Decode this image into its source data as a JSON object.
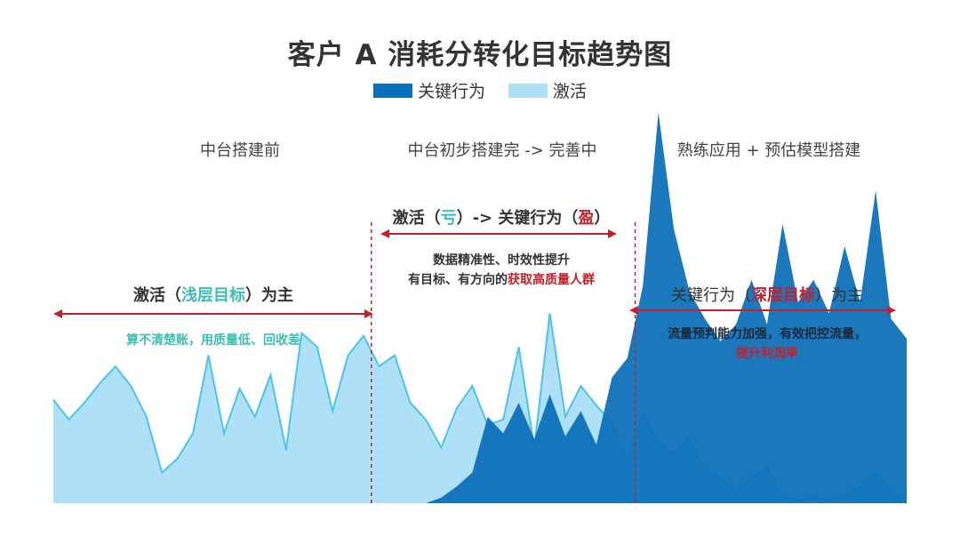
{
  "title": "客户 A 消耗分转化目标趋势图",
  "legend": {
    "series1": "关键行为",
    "series1_color": "#0b6eb8",
    "series2": "激活",
    "series2_color": "#aee0f8"
  },
  "phases": {
    "p1": "中台搭建前",
    "p2": "中台初步搭建完 -> 完善中",
    "p3": "熟练应用 + 预估模型搭建"
  },
  "annotations": {
    "a1": {
      "pre": "激活（",
      "em": "浅层目标",
      "post": "）为主",
      "em_color": "#3bbfb0",
      "note": "算不清楚账，用质量低、回收差",
      "note_color": "#3bbfb0"
    },
    "a2": {
      "pre": "激活（",
      "em1": "亏",
      "mid": "）-> 关键行为（",
      "em2": "盈",
      "post": "）",
      "em1_color": "#3bbfb0",
      "em2_color": "#c0222e",
      "line1": "数据精准性、时效性提升",
      "line2_pre": "有目标、有方向的",
      "line2_em": "获取高质量人群",
      "line2_em_color": "#c0222e"
    },
    "a3": {
      "pre": "关键行为（",
      "em": "深层目标",
      "post": "）为主",
      "em_color": "#c0222e",
      "note1": "流量预判能力加强，有效把控流量，",
      "note2": "提升利润率",
      "note2_color": "#c0222e"
    }
  },
  "chart_data": {
    "type": "area",
    "title": "客户 A 消耗分转化目标趋势图",
    "xlabel": "",
    "ylabel": "",
    "ylim": [
      0,
      100
    ],
    "grid": false,
    "legend_position": "top",
    "phase_boundaries": [
      20.5,
      37.5
    ],
    "x": [
      0,
      1,
      2,
      3,
      4,
      5,
      6,
      7,
      8,
      9,
      10,
      11,
      12,
      13,
      14,
      15,
      16,
      17,
      18,
      19,
      20,
      21,
      22,
      23,
      24,
      25,
      26,
      27,
      28,
      29,
      30,
      31,
      32,
      33,
      34,
      35,
      36,
      37,
      38,
      39,
      40,
      41,
      42,
      43,
      44,
      45,
      46,
      47,
      48,
      49,
      50,
      51,
      52,
      53,
      54,
      55
    ],
    "series": [
      {
        "name": "激活",
        "color": "#aee0f8",
        "values": [
          37,
          30,
          36,
          43,
          49,
          42,
          31,
          11,
          16,
          25,
          53,
          25,
          41,
          31,
          46,
          19,
          61,
          56,
          33,
          53,
          60,
          49,
          53,
          36,
          30,
          20,
          34,
          42,
          28,
          30,
          56,
          20,
          68,
          31,
          42,
          35,
          29,
          15,
          32,
          21,
          18,
          23,
          12,
          9,
          4,
          9,
          13,
          2,
          1,
          2,
          1,
          3,
          6,
          11,
          4,
          0
        ]
      },
      {
        "name": "关键行为",
        "color": "#0b6eb8",
        "values": [
          0,
          0,
          0,
          0,
          0,
          0,
          0,
          0,
          0,
          0,
          0,
          0,
          0,
          0,
          0,
          0,
          0,
          0,
          0,
          0,
          0,
          0,
          0,
          0,
          0,
          2,
          6,
          11,
          31,
          25,
          36,
          23,
          39,
          24,
          33,
          21,
          45,
          52,
          78,
          140,
          98,
          76,
          66,
          58,
          64,
          80,
          64,
          100,
          72,
          80,
          68,
          92,
          72,
          112,
          66,
          59
        ]
      }
    ]
  }
}
